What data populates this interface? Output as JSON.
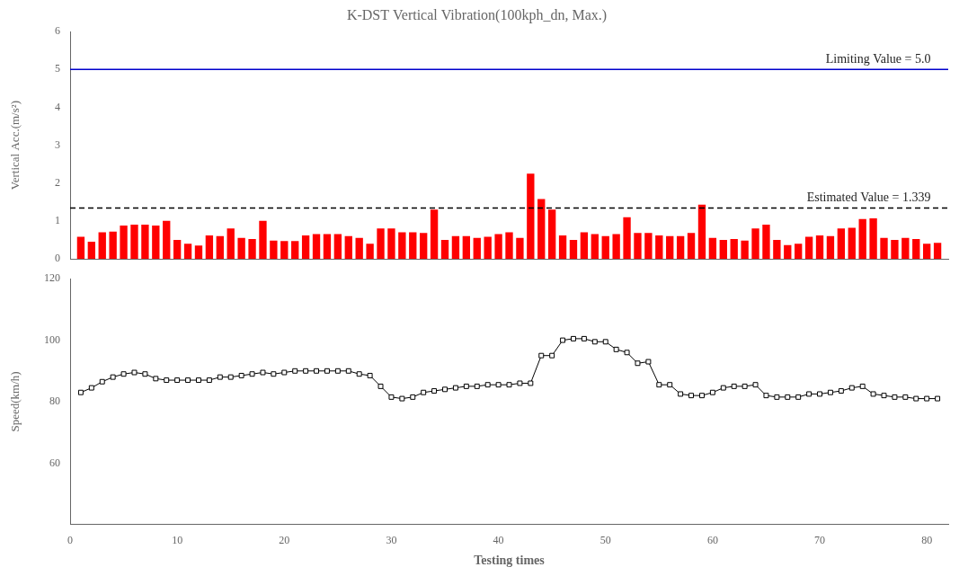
{
  "chart_data": [
    {
      "type": "bar",
      "title": "K-DST Vertical Vibration(100kph_dn, Max.)",
      "x": [
        1,
        2,
        3,
        4,
        5,
        6,
        7,
        8,
        9,
        10,
        11,
        12,
        13,
        14,
        15,
        16,
        17,
        18,
        19,
        20,
        21,
        22,
        23,
        24,
        25,
        26,
        27,
        28,
        29,
        30,
        31,
        32,
        33,
        34,
        35,
        36,
        37,
        38,
        39,
        40,
        41,
        42,
        43,
        44,
        45,
        46,
        47,
        48,
        49,
        50,
        51,
        52,
        53,
        54,
        55,
        56,
        57,
        58,
        59,
        60,
        61,
        62,
        63,
        64,
        65,
        66,
        67,
        68,
        69,
        70,
        71,
        72,
        73,
        74,
        75,
        76,
        77,
        78,
        79,
        80,
        81
      ],
      "values": [
        0.58,
        0.45,
        0.7,
        0.72,
        0.88,
        0.9,
        0.9,
        0.88,
        1.0,
        0.5,
        0.4,
        0.35,
        0.62,
        0.6,
        0.8,
        0.55,
        0.52,
        1.0,
        0.48,
        0.47,
        0.47,
        0.62,
        0.65,
        0.65,
        0.65,
        0.6,
        0.55,
        0.4,
        0.8,
        0.8,
        0.7,
        0.7,
        0.68,
        1.3,
        0.5,
        0.6,
        0.6,
        0.55,
        0.58,
        0.65,
        0.7,
        0.55,
        2.25,
        1.58,
        1.3,
        0.62,
        0.5,
        0.7,
        0.65,
        0.6,
        0.65,
        1.1,
        0.68,
        0.68,
        0.62,
        0.6,
        0.6,
        0.68,
        1.43,
        0.55,
        0.5,
        0.52,
        0.48,
        0.8,
        0.9,
        0.5,
        0.36,
        0.4,
        0.58,
        0.62,
        0.6,
        0.8,
        0.82,
        1.05,
        1.07,
        0.55,
        0.5,
        0.55,
        0.52,
        0.4,
        0.42
      ],
      "color": "#FF0000",
      "xlim": [
        0,
        82
      ],
      "xticks": [
        0,
        10,
        20,
        30,
        40,
        50,
        60,
        70,
        80
      ],
      "ylim": [
        0,
        6
      ],
      "yticks": [
        0,
        1,
        2,
        3,
        4,
        5,
        6
      ],
      "ylabel": "Vertical Acc.(m/s²)",
      "reference_lines": [
        {
          "value": 5.0,
          "color": "#0000CC",
          "line_style": "solid",
          "label": "Limiting Value = 5.0"
        },
        {
          "value": 1.339,
          "color": "#000000",
          "line_style": "dashed",
          "label": "Estimated Value = 1.339"
        }
      ],
      "grid": false,
      "tick_labels": "y"
    },
    {
      "type": "line",
      "x": [
        1,
        2,
        3,
        4,
        5,
        6,
        7,
        8,
        9,
        10,
        11,
        12,
        13,
        14,
        15,
        16,
        17,
        18,
        19,
        20,
        21,
        22,
        23,
        24,
        25,
        26,
        27,
        28,
        29,
        30,
        31,
        32,
        33,
        34,
        35,
        36,
        37,
        38,
        39,
        40,
        41,
        42,
        43,
        44,
        45,
        46,
        47,
        48,
        49,
        50,
        51,
        52,
        53,
        54,
        55,
        56,
        57,
        58,
        59,
        60,
        61,
        62,
        63,
        64,
        65,
        66,
        67,
        68,
        69,
        70,
        71,
        72,
        73,
        74,
        75,
        76,
        77,
        78,
        79,
        80,
        81
      ],
      "values": [
        83.0,
        84.5,
        86.5,
        88.0,
        89.0,
        89.5,
        89.0,
        87.5,
        87.0,
        87.0,
        87.0,
        87.0,
        87.0,
        88.0,
        88.0,
        88.5,
        89.0,
        89.5,
        89.0,
        89.5,
        90.0,
        90.0,
        90.0,
        90.0,
        90.0,
        90.0,
        89.0,
        88.5,
        85.0,
        81.5,
        81.0,
        81.5,
        83.0,
        83.5,
        84.0,
        84.5,
        85.0,
        85.0,
        85.5,
        85.5,
        85.5,
        86.0,
        86.0,
        95.0,
        95.0,
        100.0,
        100.5,
        100.5,
        99.5,
        99.5,
        97.0,
        96.0,
        92.5,
        93.0,
        85.5,
        85.5,
        82.5,
        82.0,
        82.0,
        83.0,
        84.5,
        85.0,
        85.0,
        85.5,
        82.0,
        81.5,
        81.5,
        81.5,
        82.5,
        82.5,
        83.0,
        83.5,
        84.5,
        85.0,
        82.5,
        82.0,
        81.5,
        81.5,
        81.0,
        81.0,
        81.0
      ],
      "color": "#000000",
      "marker": "square",
      "xlim": [
        0,
        82
      ],
      "xticks": [
        0,
        10,
        20,
        30,
        40,
        50,
        60,
        70,
        80
      ],
      "ylim": [
        40,
        120
      ],
      "yticks": [
        60,
        80,
        100,
        120
      ],
      "xlabel": "Testing times",
      "ylabel": "Speed(km/h)",
      "grid": false
    }
  ]
}
